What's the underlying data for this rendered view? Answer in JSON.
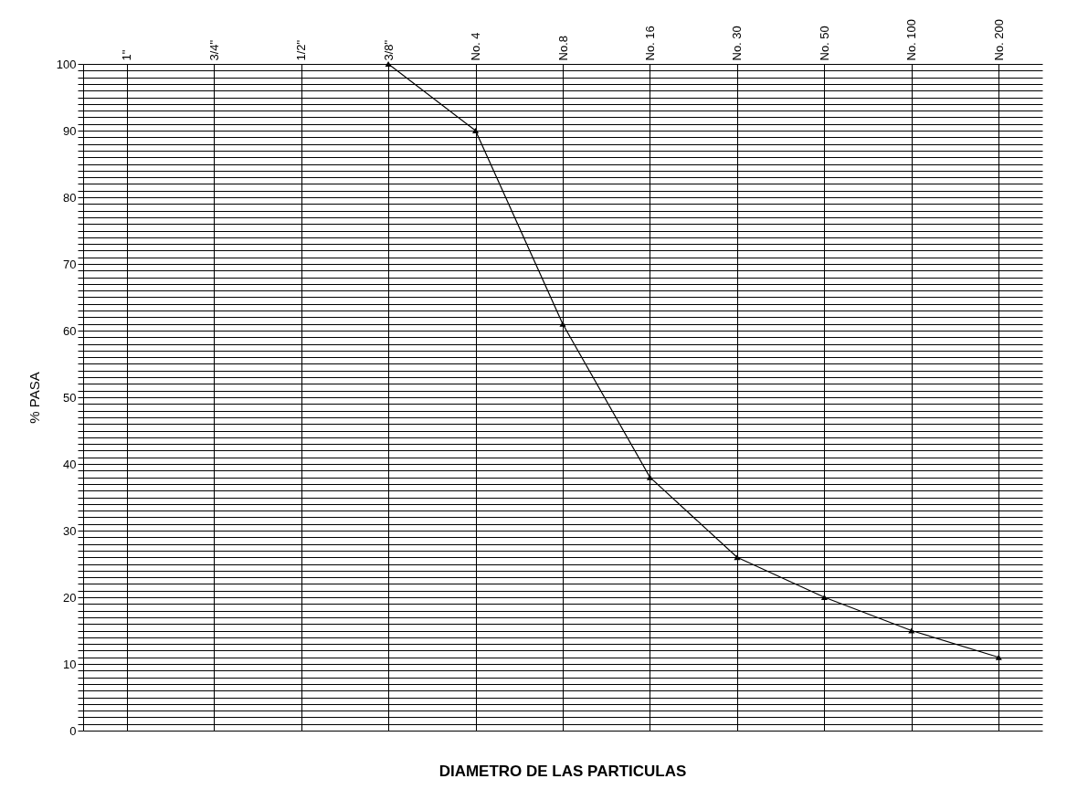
{
  "chart_data": {
    "type": "line",
    "xlabel": "DIAMETRO DE LAS PARTICULAS",
    "ylabel": "% PASA",
    "categories": [
      "1\"",
      "3/4\"",
      "1/2\"",
      "3/8\"",
      "No. 4",
      "No.8",
      "No. 16",
      "No. 30",
      "No. 50",
      "No. 100",
      "No. 200"
    ],
    "ylim": [
      0,
      100
    ],
    "yticks": [
      0,
      {
        "value": 1,
        "label": null
      },
      {
        "value": 2,
        "label": null
      },
      {
        "value": 3,
        "label": null
      },
      {
        "value": 4,
        "label": null
      },
      {
        "value": 5,
        "label": null
      },
      {
        "value": 6,
        "label": null
      },
      {
        "value": 7,
        "label": null
      },
      {
        "value": 8,
        "label": null
      },
      {
        "value": 9,
        "label": null
      },
      10,
      {
        "value": 11,
        "label": null
      },
      {
        "value": 12,
        "label": null
      },
      {
        "value": 13,
        "label": null
      },
      {
        "value": 14,
        "label": null
      },
      {
        "value": 15,
        "label": null
      },
      {
        "value": 16,
        "label": null
      },
      {
        "value": 17,
        "label": null
      },
      {
        "value": 18,
        "label": null
      },
      {
        "value": 19,
        "label": null
      },
      20,
      {
        "value": 21,
        "label": null
      },
      {
        "value": 22,
        "label": null
      },
      {
        "value": 23,
        "label": null
      },
      {
        "value": 24,
        "label": null
      },
      {
        "value": 25,
        "label": null
      },
      {
        "value": 26,
        "label": null
      },
      {
        "value": 27,
        "label": null
      },
      {
        "value": 28,
        "label": null
      },
      {
        "value": 29,
        "label": null
      },
      30,
      {
        "value": 31,
        "label": null
      },
      {
        "value": 32,
        "label": null
      },
      {
        "value": 33,
        "label": null
      },
      {
        "value": 34,
        "label": null
      },
      {
        "value": 35,
        "label": null
      },
      {
        "value": 36,
        "label": null
      },
      {
        "value": 37,
        "label": null
      },
      {
        "value": 38,
        "label": null
      },
      {
        "value": 39,
        "label": null
      },
      40,
      {
        "value": 41,
        "label": null
      },
      {
        "value": 42,
        "label": null
      },
      {
        "value": 43,
        "label": null
      },
      {
        "value": 44,
        "label": null
      },
      {
        "value": 45,
        "label": null
      },
      {
        "value": 46,
        "label": null
      },
      {
        "value": 47,
        "label": null
      },
      {
        "value": 48,
        "label": null
      },
      {
        "value": 49,
        "label": null
      },
      50,
      {
        "value": 51,
        "label": null
      },
      {
        "value": 52,
        "label": null
      },
      {
        "value": 53,
        "label": null
      },
      {
        "value": 54,
        "label": null
      },
      {
        "value": 55,
        "label": null
      },
      {
        "value": 56,
        "label": null
      },
      {
        "value": 57,
        "label": null
      },
      {
        "value": 58,
        "label": null
      },
      {
        "value": 59,
        "label": null
      },
      60,
      {
        "value": 61,
        "label": null
      },
      {
        "value": 62,
        "label": null
      },
      {
        "value": 63,
        "label": null
      },
      {
        "value": 64,
        "label": null
      },
      {
        "value": 65,
        "label": null
      },
      {
        "value": 66,
        "label": null
      },
      {
        "value": 67,
        "label": null
      },
      {
        "value": 68,
        "label": null
      },
      {
        "value": 69,
        "label": null
      },
      70,
      {
        "value": 71,
        "label": null
      },
      {
        "value": 72,
        "label": null
      },
      {
        "value": 73,
        "label": null
      },
      {
        "value": 74,
        "label": null
      },
      {
        "value": 75,
        "label": null
      },
      {
        "value": 76,
        "label": null
      },
      {
        "value": 77,
        "label": null
      },
      {
        "value": 78,
        "label": null
      },
      {
        "value": 79,
        "label": null
      },
      80,
      {
        "value": 81,
        "label": null
      },
      {
        "value": 82,
        "label": null
      },
      {
        "value": 83,
        "label": null
      },
      {
        "value": 84,
        "label": null
      },
      {
        "value": 85,
        "label": null
      },
      {
        "value": 86,
        "label": null
      },
      {
        "value": 87,
        "label": null
      },
      {
        "value": 88,
        "label": null
      },
      {
        "value": 89,
        "label": null
      },
      90,
      {
        "value": 91,
        "label": null
      },
      {
        "value": 92,
        "label": null
      },
      {
        "value": 93,
        "label": null
      },
      {
        "value": 94,
        "label": null
      },
      {
        "value": 95,
        "label": null
      },
      {
        "value": 96,
        "label": null
      },
      {
        "value": 97,
        "label": null
      },
      {
        "value": 98,
        "label": null
      },
      {
        "value": 99,
        "label": null
      },
      100
    ],
    "grid": true,
    "marker": "triangle",
    "line_style": "solid",
    "series": [
      {
        "color": "#000000",
        "values": [
          null,
          null,
          null,
          100,
          90,
          61,
          38,
          26,
          20,
          15,
          11
        ]
      }
    ]
  }
}
